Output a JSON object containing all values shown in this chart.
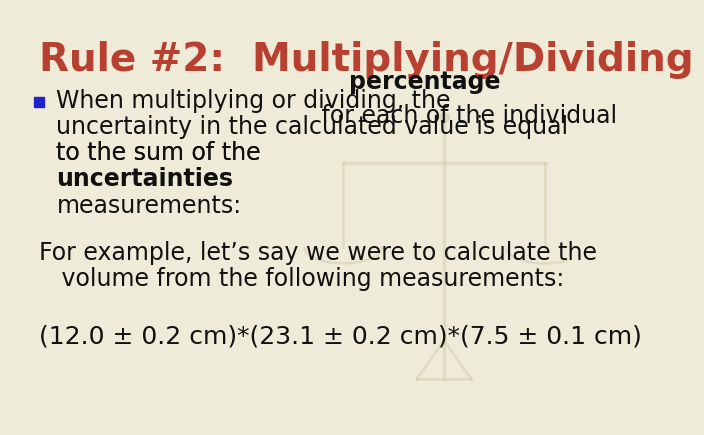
{
  "title": "Rule #2:  Multiplying/Dividing",
  "title_color": "#B84030",
  "title_fontsize": 28,
  "background_color": "#EEEBD8",
  "bullet_color": "#2222CC",
  "body_fontsize": 17,
  "formula_fontsize": 18,
  "text_color": "#111111",
  "example_line1": "For example, let’s say we were to calculate the",
  "example_line2": "   volume from the following measurements:",
  "formula_line": "(12.0 ± 0.2 cm)*(23.1 ± 0.2 cm)*(7.5 ± 0.1 cm)"
}
